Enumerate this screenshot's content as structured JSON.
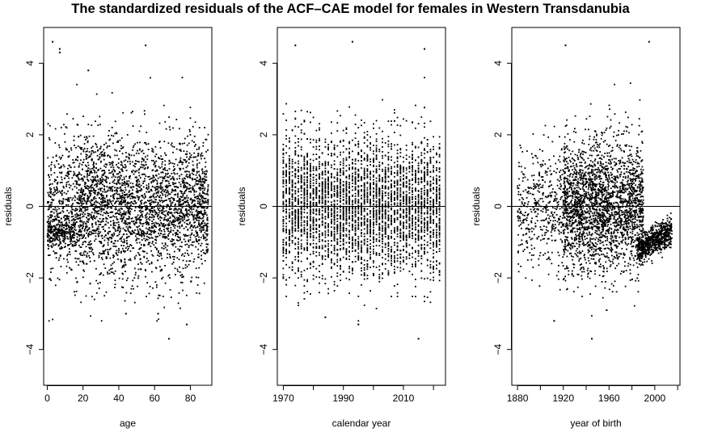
{
  "title": "The standardized residuals of the ACF–CAE model for females in Western Transdanubia",
  "chart_data": [
    {
      "type": "scatter",
      "xlabel": "age",
      "ylabel": "residuals",
      "xlim": [
        -2,
        92
      ],
      "ylim": [
        -5,
        5
      ],
      "xticks": [
        0,
        20,
        40,
        60,
        80
      ],
      "yticks": [
        -4,
        -2,
        0,
        2,
        4
      ],
      "reference_line_y": 0,
      "grid": false,
      "point_color": "#000000",
      "points_note": "dense cloud of several thousand points, mostly between -2 and 2, sample outliers listed",
      "outliers": [
        [
          3,
          4.6
        ],
        [
          7,
          4.4
        ],
        [
          7,
          4.3
        ],
        [
          55,
          4.5
        ],
        [
          23,
          3.8
        ],
        [
          68,
          -3.7
        ],
        [
          78,
          -3.3
        ],
        [
          44,
          -3.0
        ],
        [
          62,
          -3.0
        ]
      ]
    },
    {
      "type": "scatter",
      "xlabel": "calendar year",
      "ylabel": "residuals",
      "xlim": [
        1968,
        2024
      ],
      "ylim": [
        -5,
        5
      ],
      "xticks": [
        1970,
        1990,
        2010
      ],
      "yticks": [
        -4,
        -2,
        0,
        2,
        4
      ],
      "reference_line_y": 0,
      "grid": false,
      "point_color": "#000000",
      "points_note": "vertical columns of points, one per calendar year 1970-2022",
      "outliers": [
        [
          1974,
          4.5
        ],
        [
          1993,
          4.6
        ],
        [
          2017,
          4.4
        ],
        [
          2015,
          -3.7
        ],
        [
          1984,
          -3.1
        ],
        [
          1995,
          -3.3
        ]
      ]
    },
    {
      "type": "scatter",
      "xlabel": "year of birth",
      "ylabel": "residuals",
      "xlim": [
        1875,
        2022
      ],
      "ylim": [
        -5,
        5
      ],
      "xticks": [
        1880,
        1920,
        1960,
        2000
      ],
      "yticks": [
        -4,
        -2,
        0,
        2,
        4
      ],
      "reference_line_y": 0,
      "grid": false,
      "point_color": "#000000",
      "points_note": "diagonal cohort bands, dense mass 1920-1990 and arc near -0.7 for 1985-2015",
      "outliers": [
        [
          1922,
          4.5
        ],
        [
          1995,
          4.6
        ],
        [
          1945,
          -3.7
        ],
        [
          1912,
          -3.2
        ],
        [
          1958,
          -2.9
        ]
      ]
    }
  ]
}
